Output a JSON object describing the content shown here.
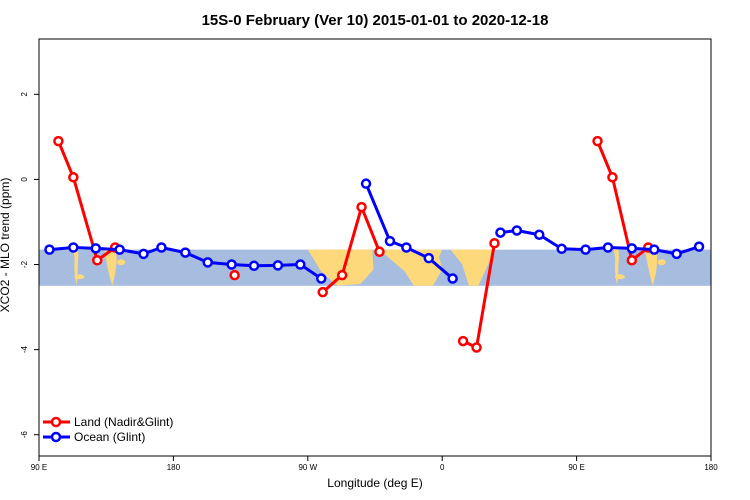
{
  "chart_data": {
    "type": "line",
    "title": "15S-0 February (Ver 10)   2015-01-01 to 2020-12-18",
    "xlabel": "Longitude (deg E)",
    "ylabel": "XCO2 - MLO trend (ppm)",
    "xlim": [
      90,
      540
    ],
    "ylim": [
      -6.5,
      3.3
    ],
    "x_ticks": [
      {
        "value": 90,
        "label": "90 E"
      },
      {
        "value": 180,
        "label": "180"
      },
      {
        "value": 270,
        "label": "90 W"
      },
      {
        "value": 360,
        "label": "0"
      },
      {
        "value": 450,
        "label": "90 E"
      },
      {
        "value": 540,
        "label": "180"
      }
    ],
    "y_ticks": [
      {
        "value": -6,
        "label": "-6"
      },
      {
        "value": -4,
        "label": "-4"
      },
      {
        "value": -2,
        "label": "-2"
      },
      {
        "value": 0,
        "label": "0"
      },
      {
        "value": 2,
        "label": "2"
      }
    ],
    "map_band": {
      "y_top": -1.65,
      "y_bottom": -2.5,
      "ocean_color": "#a7bde0",
      "land_color": "#fdd97c"
    },
    "legend": {
      "position": "bottom-left"
    },
    "series": [
      {
        "name": "Land (Nadir&Glint)",
        "color": "#ff0000",
        "segments": [
          [
            [
              103,
              0.9
            ],
            [
              113,
              0.05
            ],
            [
              129,
              -1.9
            ],
            [
              141,
              -1.6
            ]
          ],
          [
            [
              221,
              -2.25
            ]
          ],
          [
            [
              280,
              -2.65
            ],
            [
              293,
              -2.25
            ],
            [
              306,
              -0.65
            ],
            [
              318,
              -1.7
            ]
          ],
          [
            [
              374,
              -3.8
            ],
            [
              383,
              -3.95
            ],
            [
              395,
              -1.5
            ]
          ],
          [
            [
              464,
              0.9
            ],
            [
              474,
              0.05
            ],
            [
              487,
              -1.9
            ],
            [
              498,
              -1.6
            ]
          ]
        ]
      },
      {
        "name": "Ocean (Glint)",
        "color": "#0000ff",
        "segments": [
          [
            [
              97,
              -1.65
            ],
            [
              113,
              -1.6
            ],
            [
              128,
              -1.62
            ],
            [
              144,
              -1.65
            ],
            [
              160,
              -1.75
            ],
            [
              172,
              -1.6
            ],
            [
              188,
              -1.72
            ],
            [
              203,
              -1.95
            ],
            [
              219,
              -2.0
            ],
            [
              234,
              -2.03
            ],
            [
              250,
              -2.02
            ],
            [
              265,
              -2.0
            ],
            [
              279,
              -2.33
            ]
          ],
          [
            [
              309,
              -0.1
            ],
            [
              325,
              -1.45
            ],
            [
              336,
              -1.6
            ],
            [
              351,
              -1.85
            ],
            [
              367,
              -2.33
            ]
          ],
          [
            [
              399,
              -1.25
            ],
            [
              410,
              -1.2
            ],
            [
              425,
              -1.3
            ],
            [
              440,
              -1.63
            ],
            [
              456,
              -1.65
            ],
            [
              471,
              -1.6
            ],
            [
              487,
              -1.62
            ],
            [
              502,
              -1.65
            ],
            [
              517,
              -1.75
            ],
            [
              532,
              -1.58
            ]
          ]
        ]
      }
    ]
  }
}
